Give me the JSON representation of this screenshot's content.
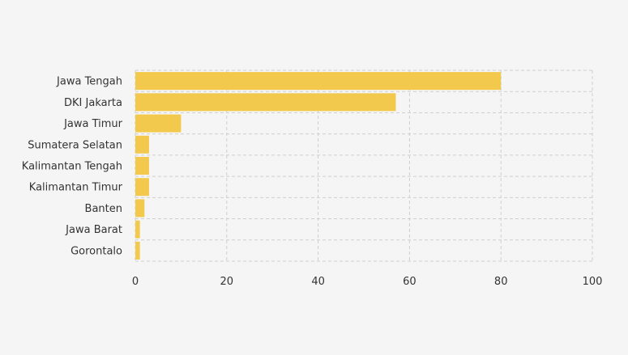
{
  "chart_data": {
    "type": "bar",
    "orientation": "horizontal",
    "categories": [
      "Jawa Tengah",
      "DKI Jakarta",
      "Jawa Timur",
      "Sumatera Selatan",
      "Kalimantan Tengah",
      "Kalimantan Timur",
      "Banten",
      "Jawa Barat",
      "Gorontalo"
    ],
    "values": [
      80,
      57,
      10,
      3,
      3,
      3,
      2,
      1,
      1
    ],
    "title": "",
    "xlabel": "",
    "ylabel": "",
    "xlim": [
      0,
      100
    ],
    "xticks": [
      "0",
      "20",
      "40",
      "60",
      "80",
      "100"
    ],
    "grid": true,
    "bar_color": "#f2c94c"
  }
}
